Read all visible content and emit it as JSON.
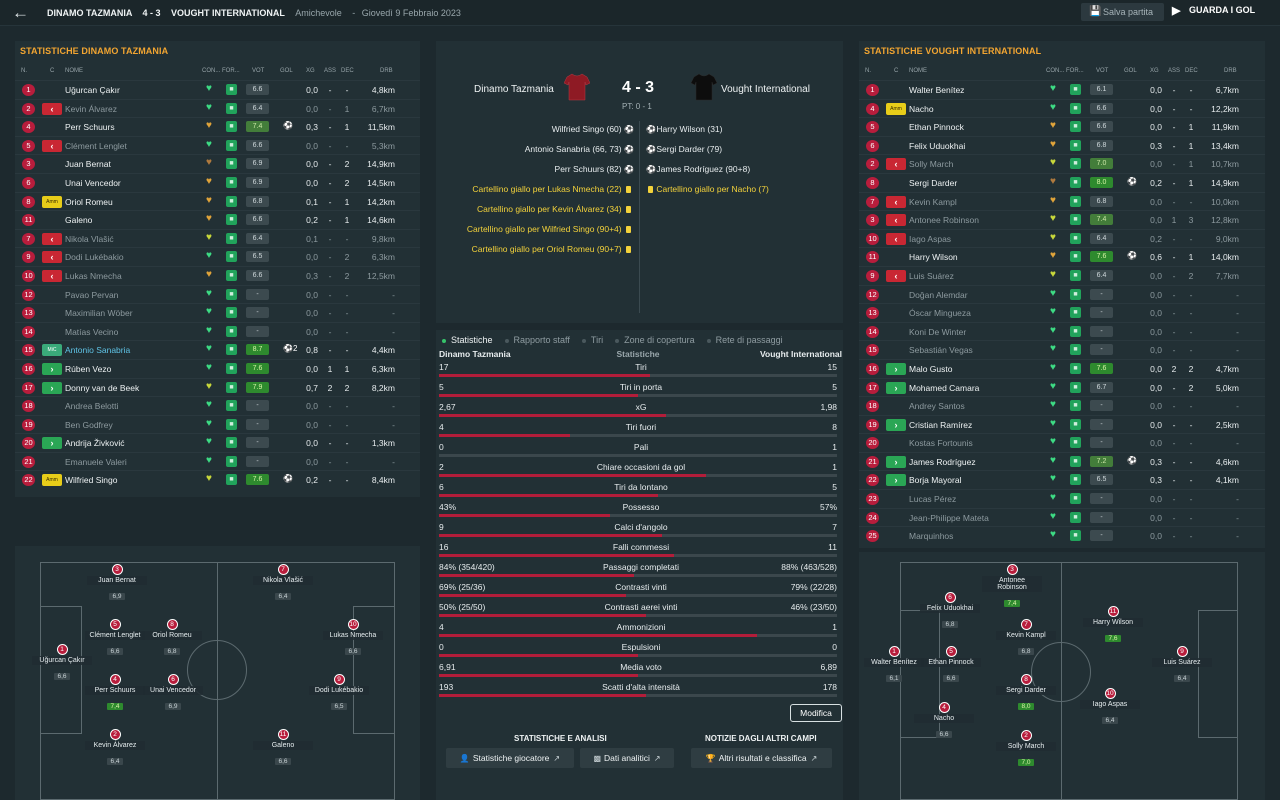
{
  "header": {
    "home": "DINAMO TAZMANIA",
    "score": "4 - 3",
    "away": "VOUGHT INTERNATIONAL",
    "competition": "Amichevole",
    "dash": "-",
    "date": "Giovedì 9 Febbraio 2023",
    "save_label": "Salva partita",
    "goals_label": "GUARDA I GOL"
  },
  "colors": {
    "home_accent": "#b81d3c",
    "highlight": "#f2a531",
    "positive": "#2aa655",
    "negative": "#c92733"
  },
  "table_headers": {
    "n": "N.",
    "c": "C",
    "nome": "NOME",
    "con": "CON...",
    "for": "FOR...",
    "vot": "VOT",
    "gol": "GOL",
    "xg": "XG",
    "ass": "ASS",
    "dec": "DEC",
    "drb": "DRB"
  },
  "left_team": {
    "title": "STATISTICHE DINAMO TAZMANIA",
    "players": [
      {
        "n": "1",
        "sub": "",
        "name": "Uğurcan Çakır",
        "cond": "green",
        "vot": "6.6",
        "gol": "",
        "xg": "0,0",
        "ass": "-",
        "dec": "-",
        "drb": "4,8km"
      },
      {
        "n": "2",
        "sub": "out",
        "name": "Kevin Álvarez",
        "cond": "green",
        "vot": "6.4",
        "gol": "",
        "xg": "0,0",
        "ass": "-",
        "dec": "1",
        "drb": "6,7km",
        "dim": true
      },
      {
        "n": "4",
        "sub": "",
        "name": "Perr Schuurs",
        "cond": "orange",
        "vot": "7.4",
        "gol": "⚽",
        "xg": "0,3",
        "ass": "-",
        "dec": "1",
        "drb": "11,5km"
      },
      {
        "n": "5",
        "sub": "out",
        "name": "Clément Lenglet",
        "cond": "green",
        "vot": "6.6",
        "gol": "",
        "xg": "0,0",
        "ass": "-",
        "dec": "-",
        "drb": "5,3km",
        "dim": true
      },
      {
        "n": "3",
        "sub": "",
        "name": "Juan Bernat",
        "cond": "brown",
        "vot": "6.9",
        "gol": "",
        "xg": "0,0",
        "ass": "-",
        "dec": "2",
        "drb": "14,9km"
      },
      {
        "n": "6",
        "sub": "",
        "name": "Unai Vencedor",
        "cond": "orange",
        "vot": "6.9",
        "gol": "",
        "xg": "0,0",
        "ass": "-",
        "dec": "2",
        "drb": "14,5km"
      },
      {
        "n": "8",
        "sub": "amm",
        "name": "Oriol Romeu",
        "cond": "orange",
        "vot": "6.8",
        "gol": "",
        "xg": "0,1",
        "ass": "-",
        "dec": "1",
        "drb": "14,2km"
      },
      {
        "n": "11",
        "sub": "",
        "name": "Galeno",
        "cond": "orange",
        "vot": "6.6",
        "gol": "",
        "xg": "0,2",
        "ass": "-",
        "dec": "1",
        "drb": "14,6km"
      },
      {
        "n": "7",
        "sub": "out",
        "name": "Nikola Vlašić",
        "cond": "yellow",
        "vot": "6.4",
        "gol": "",
        "xg": "0,1",
        "ass": "-",
        "dec": "-",
        "drb": "9,8km",
        "dim": true
      },
      {
        "n": "9",
        "sub": "out",
        "name": "Dodi Lukébakio",
        "cond": "green",
        "vot": "6.5",
        "gol": "",
        "xg": "0,0",
        "ass": "-",
        "dec": "2",
        "drb": "6,3km",
        "dim": true
      },
      {
        "n": "10",
        "sub": "out",
        "name": "Lukas Nmecha",
        "cond": "orange",
        "vot": "6.6",
        "gol": "",
        "xg": "0,3",
        "ass": "-",
        "dec": "2",
        "drb": "12,5km",
        "dim": true
      },
      {
        "n": "12",
        "sub": "",
        "name": "Pavao Pervan",
        "cond": "green",
        "vot": "-",
        "gol": "",
        "xg": "0,0",
        "ass": "-",
        "dec": "-",
        "drb": "-",
        "dim": true
      },
      {
        "n": "13",
        "sub": "",
        "name": "Maximilian Wöber",
        "cond": "green",
        "vot": "-",
        "gol": "",
        "xg": "0,0",
        "ass": "-",
        "dec": "-",
        "drb": "-",
        "dim": true
      },
      {
        "n": "14",
        "sub": "",
        "name": "Matías Vecino",
        "cond": "green",
        "vot": "-",
        "gol": "",
        "xg": "0,0",
        "ass": "-",
        "dec": "-",
        "drb": "-",
        "dim": true
      },
      {
        "n": "15",
        "sub": "mic",
        "name": "Antonio Sanabria",
        "cond": "green",
        "vot": "8.7",
        "gol": "⚽2",
        "xg": "0,8",
        "ass": "-",
        "dec": "-",
        "drb": "4,4km",
        "hl": true
      },
      {
        "n": "16",
        "sub": "in",
        "name": "Rúben Vezo",
        "cond": "green",
        "vot": "7.6",
        "gol": "",
        "xg": "0,0",
        "ass": "1",
        "dec": "1",
        "drb": "6,3km"
      },
      {
        "n": "17",
        "sub": "in",
        "name": "Donny van de Beek",
        "cond": "yellow",
        "vot": "7.9",
        "gol": "",
        "xg": "0,7",
        "ass": "2",
        "dec": "2",
        "drb": "8,2km"
      },
      {
        "n": "18",
        "sub": "",
        "name": "Andrea Belotti",
        "cond": "green",
        "vot": "-",
        "gol": "",
        "xg": "0,0",
        "ass": "-",
        "dec": "-",
        "drb": "-",
        "dim": true
      },
      {
        "n": "19",
        "sub": "",
        "name": "Ben Godfrey",
        "cond": "green",
        "vot": "-",
        "gol": "",
        "xg": "0,0",
        "ass": "-",
        "dec": "-",
        "drb": "-",
        "dim": true
      },
      {
        "n": "20",
        "sub": "in",
        "name": "Andrija Živković",
        "cond": "green",
        "vot": "-",
        "gol": "",
        "xg": "0,0",
        "ass": "-",
        "dec": "-",
        "drb": "1,3km"
      },
      {
        "n": "21",
        "sub": "",
        "name": "Emanuele Valeri",
        "cond": "green",
        "vot": "-",
        "gol": "",
        "xg": "0,0",
        "ass": "-",
        "dec": "-",
        "drb": "-",
        "dim": true
      },
      {
        "n": "22",
        "sub": "amm",
        "name": "Wilfried Singo",
        "cond": "yellow",
        "vot": "7.6",
        "gol": "⚽",
        "xg": "0,2",
        "ass": "-",
        "dec": "-",
        "drb": "8,4km"
      }
    ]
  },
  "right_team": {
    "title": "STATISTICHE VOUGHT INTERNATIONAL",
    "players": [
      {
        "n": "1",
        "sub": "",
        "name": "Walter Benítez",
        "cond": "green",
        "vot": "6.1",
        "gol": "",
        "xg": "0,0",
        "ass": "-",
        "dec": "-",
        "drb": "6,7km"
      },
      {
        "n": "4",
        "sub": "amm",
        "name": "Nacho",
        "cond": "green",
        "vot": "6.6",
        "gol": "",
        "xg": "0,0",
        "ass": "-",
        "dec": "-",
        "drb": "12,2km"
      },
      {
        "n": "5",
        "sub": "",
        "name": "Ethan Pinnock",
        "cond": "orange",
        "vot": "6.6",
        "gol": "",
        "xg": "0,0",
        "ass": "-",
        "dec": "1",
        "drb": "11,9km"
      },
      {
        "n": "6",
        "sub": "",
        "name": "Felix Uduokhai",
        "cond": "orange",
        "vot": "6.8",
        "gol": "",
        "xg": "0,3",
        "ass": "-",
        "dec": "1",
        "drb": "13,4km"
      },
      {
        "n": "2",
        "sub": "out",
        "name": "Solly March",
        "cond": "yellow",
        "vot": "7.0",
        "gol": "",
        "xg": "0,0",
        "ass": "-",
        "dec": "1",
        "drb": "10,7km",
        "dim": true
      },
      {
        "n": "8",
        "sub": "",
        "name": "Sergi Darder",
        "cond": "brown",
        "vot": "8.0",
        "gol": "⚽",
        "xg": "0,2",
        "ass": "-",
        "dec": "1",
        "drb": "14,9km"
      },
      {
        "n": "7",
        "sub": "out",
        "name": "Kevin Kampl",
        "cond": "orange",
        "vot": "6.8",
        "gol": "",
        "xg": "0,0",
        "ass": "-",
        "dec": "-",
        "drb": "10,0km",
        "dim": true
      },
      {
        "n": "3",
        "sub": "out",
        "name": "Antonee Robinson",
        "cond": "yellow",
        "vot": "7.4",
        "gol": "",
        "xg": "0,0",
        "ass": "1",
        "dec": "3",
        "drb": "12,8km",
        "dim": true
      },
      {
        "n": "10",
        "sub": "out",
        "name": "Iago Aspas",
        "cond": "yellow",
        "vot": "6.4",
        "gol": "",
        "xg": "0,2",
        "ass": "-",
        "dec": "-",
        "drb": "9,0km",
        "dim": true
      },
      {
        "n": "11",
        "sub": "",
        "name": "Harry Wilson",
        "cond": "orange",
        "vot": "7.6",
        "gol": "⚽",
        "xg": "0,6",
        "ass": "-",
        "dec": "1",
        "drb": "14,0km"
      },
      {
        "n": "9",
        "sub": "out",
        "name": "Luis Suárez",
        "cond": "yellow",
        "vot": "6.4",
        "gol": "",
        "xg": "0,0",
        "ass": "-",
        "dec": "2",
        "drb": "7,7km",
        "dim": true
      },
      {
        "n": "12",
        "sub": "",
        "name": "Doğan Alemdar",
        "cond": "green",
        "vot": "-",
        "gol": "",
        "xg": "0,0",
        "ass": "-",
        "dec": "-",
        "drb": "-",
        "dim": true
      },
      {
        "n": "13",
        "sub": "",
        "name": "Óscar Mingueza",
        "cond": "green",
        "vot": "-",
        "gol": "",
        "xg": "0,0",
        "ass": "-",
        "dec": "-",
        "drb": "-",
        "dim": true
      },
      {
        "n": "14",
        "sub": "",
        "name": "Koni De Winter",
        "cond": "green",
        "vot": "-",
        "gol": "",
        "xg": "0,0",
        "ass": "-",
        "dec": "-",
        "drb": "-",
        "dim": true
      },
      {
        "n": "15",
        "sub": "",
        "name": "Sebastián Vegas",
        "cond": "green",
        "vot": "-",
        "gol": "",
        "xg": "0,0",
        "ass": "-",
        "dec": "-",
        "drb": "-",
        "dim": true
      },
      {
        "n": "16",
        "sub": "in",
        "name": "Malo Gusto",
        "cond": "green",
        "vot": "7.6",
        "gol": "",
        "xg": "0,0",
        "ass": "2",
        "dec": "2",
        "drb": "4,7km"
      },
      {
        "n": "17",
        "sub": "in",
        "name": "Mohamed Camara",
        "cond": "green",
        "vot": "6.7",
        "gol": "",
        "xg": "0,0",
        "ass": "-",
        "dec": "2",
        "drb": "5,0km"
      },
      {
        "n": "18",
        "sub": "",
        "name": "Andrey Santos",
        "cond": "green",
        "vot": "-",
        "gol": "",
        "xg": "0,0",
        "ass": "-",
        "dec": "-",
        "drb": "-",
        "dim": true
      },
      {
        "n": "19",
        "sub": "in",
        "name": "Cristian Ramírez",
        "cond": "green",
        "vot": "-",
        "gol": "",
        "xg": "0,0",
        "ass": "-",
        "dec": "-",
        "drb": "2,5km"
      },
      {
        "n": "20",
        "sub": "",
        "name": "Kostas Fortounis",
        "cond": "green",
        "vot": "-",
        "gol": "",
        "xg": "0,0",
        "ass": "-",
        "dec": "-",
        "drb": "-",
        "dim": true
      },
      {
        "n": "21",
        "sub": "in",
        "name": "James Rodríguez",
        "cond": "green",
        "vot": "7.2",
        "gol": "⚽",
        "xg": "0,3",
        "ass": "-",
        "dec": "-",
        "drb": "4,6km"
      },
      {
        "n": "22",
        "sub": "in",
        "name": "Borja Mayoral",
        "cond": "green",
        "vot": "6.5",
        "gol": "",
        "xg": "0,3",
        "ass": "-",
        "dec": "-",
        "drb": "4,1km"
      },
      {
        "n": "23",
        "sub": "",
        "name": "Lucas Pérez",
        "cond": "green",
        "vot": "-",
        "gol": "",
        "xg": "0,0",
        "ass": "-",
        "dec": "-",
        "drb": "-",
        "dim": true
      },
      {
        "n": "24",
        "sub": "",
        "name": "Jean-Philippe Mateta",
        "cond": "green",
        "vot": "-",
        "gol": "",
        "xg": "0,0",
        "ass": "-",
        "dec": "-",
        "drb": "-",
        "dim": true
      },
      {
        "n": "25",
        "sub": "",
        "name": "Marquinhos",
        "cond": "green",
        "vot": "-",
        "gol": "",
        "xg": "0,0",
        "ass": "-",
        "dec": "-",
        "drb": "-",
        "dim": true
      }
    ]
  },
  "left_pitch": [
    {
      "n": "3",
      "name": "Juan Bernat",
      "r": "6,9"
    },
    {
      "n": "7",
      "name": "Nikola Vlašić",
      "r": "6,4"
    },
    {
      "n": "5",
      "name": "Clément Lenglet",
      "r": "6,6"
    },
    {
      "n": "8",
      "name": "Oriol Romeu",
      "r": "6,8"
    },
    {
      "n": "10",
      "name": "Lukas Nmecha",
      "r": "6,6"
    },
    {
      "n": "1",
      "name": "Uğurcan Çakır",
      "r": "6,6"
    },
    {
      "n": "4",
      "name": "Perr Schuurs",
      "r": "7,4",
      "good": true
    },
    {
      "n": "6",
      "name": "Unai Vencedor",
      "r": "6,9"
    },
    {
      "n": "9",
      "name": "Dodi Lukébakio",
      "r": "6,5"
    },
    {
      "n": "2",
      "name": "Kevin Álvarez",
      "r": "6,4"
    },
    {
      "n": "11",
      "name": "Galeno",
      "r": "6,6"
    }
  ],
  "right_pitch": [
    {
      "n": "3",
      "name": "Antonee Robinson",
      "r": "7,4",
      "good": true
    },
    {
      "n": "6",
      "name": "Felix Uduokhai",
      "r": "6,8"
    },
    {
      "n": "11",
      "name": "Harry Wilson",
      "r": "7,6",
      "good": true
    },
    {
      "n": "7",
      "name": "Kevin Kampl",
      "r": "6,8"
    },
    {
      "n": "1",
      "name": "Walter Benítez",
      "r": "6,1"
    },
    {
      "n": "5",
      "name": "Ethan Pinnock",
      "r": "6,6"
    },
    {
      "n": "9",
      "name": "Luis Suárez",
      "r": "6,4"
    },
    {
      "n": "8",
      "name": "Sergi Darder",
      "r": "8,0",
      "good": true
    },
    {
      "n": "10",
      "name": "Iago Aspas",
      "r": "6,4"
    },
    {
      "n": "4",
      "name": "Nacho",
      "r": "6,6"
    },
    {
      "n": "2",
      "name": "Solly March",
      "r": "7,0",
      "good": true
    }
  ],
  "scoreboard": {
    "home": "Dinamo Tazmania",
    "away": "Vought International",
    "score": "4 - 3",
    "ht": "PT: 0 - 1"
  },
  "events": {
    "home": [
      {
        "text": "Wilfried Singo (60)",
        "type": "goal"
      },
      {
        "text": "Antonio Sanabria (66, 73)",
        "type": "goal"
      },
      {
        "text": "Perr Schuurs (82)",
        "type": "goal"
      },
      {
        "text": "Cartellino giallo per Lukas Nmecha (22)",
        "type": "card"
      },
      {
        "text": "Cartellino giallo per Kevin Álvarez (34)",
        "type": "card"
      },
      {
        "text": "Cartellino giallo per Wilfried Singo (90+4)",
        "type": "card"
      },
      {
        "text": "Cartellino giallo per Oriol Romeu (90+7)",
        "type": "card"
      }
    ],
    "away": [
      {
        "text": "Harry Wilson (31)",
        "type": "goal"
      },
      {
        "text": "Sergi Darder (79)",
        "type": "goal"
      },
      {
        "text": "James Rodríguez (90+8)",
        "type": "goal"
      },
      {
        "text": "Cartellino giallo per Nacho (7)",
        "type": "card"
      }
    ]
  },
  "tabs": [
    "Statistiche",
    "Rapporto staff",
    "Tiri",
    "Zone di copertura",
    "Rete di passaggi"
  ],
  "stats_header": {
    "home": "Dinamo Tazmania",
    "mid": "Statistiche",
    "away": "Vought International"
  },
  "stats": [
    {
      "label": "Tiri",
      "home": "17",
      "away": "15",
      "share": 0.53
    },
    {
      "label": "Tiri in porta",
      "home": "5",
      "away": "5",
      "share": 0.5
    },
    {
      "label": "xG",
      "home": "2,67",
      "away": "1,98",
      "share": 0.57
    },
    {
      "label": "Tiri fuori",
      "home": "4",
      "away": "8",
      "share": 0.33
    },
    {
      "label": "Pali",
      "home": "0",
      "away": "1",
      "share": 0.0
    },
    {
      "label": "Chiare occasioni da gol",
      "home": "2",
      "away": "1",
      "share": 0.67
    },
    {
      "label": "Tiri da lontano",
      "home": "6",
      "away": "5",
      "share": 0.55
    },
    {
      "label": "Possesso",
      "home": "43%",
      "away": "57%",
      "share": 0.43
    },
    {
      "label": "Calci d'angolo",
      "home": "9",
      "away": "7",
      "share": 0.56
    },
    {
      "label": "Falli commessi",
      "home": "16",
      "away": "11",
      "share": 0.59
    },
    {
      "label": "Passaggi completati",
      "home": "84% (354/420)",
      "away": "88% (463/528)",
      "share": 0.49
    },
    {
      "label": "Contrasti vinti",
      "home": "69% (25/36)",
      "away": "79% (22/28)",
      "share": 0.47
    },
    {
      "label": "Contrasti aerei vinti",
      "home": "50% (25/50)",
      "away": "46% (23/50)",
      "share": 0.52
    },
    {
      "label": "Ammonizioni",
      "home": "4",
      "away": "1",
      "share": 0.8
    },
    {
      "label": "Espulsioni",
      "home": "0",
      "away": "0",
      "share": 0.5
    },
    {
      "label": "Media voto",
      "home": "6,91",
      "away": "6,89",
      "share": 0.5
    },
    {
      "label": "Scatti d'alta intensità",
      "home": "193",
      "away": "178",
      "share": 0.52
    }
  ],
  "modify_label": "Modifica",
  "bottom": {
    "h1": "STATISTICHE E ANALISI",
    "h2": "NOTIZIE DAGLI ALTRI CAMPI",
    "b1": "Statistiche giocatore",
    "b2": "Dati analitici",
    "b3": "Altri risultati e classifica"
  }
}
